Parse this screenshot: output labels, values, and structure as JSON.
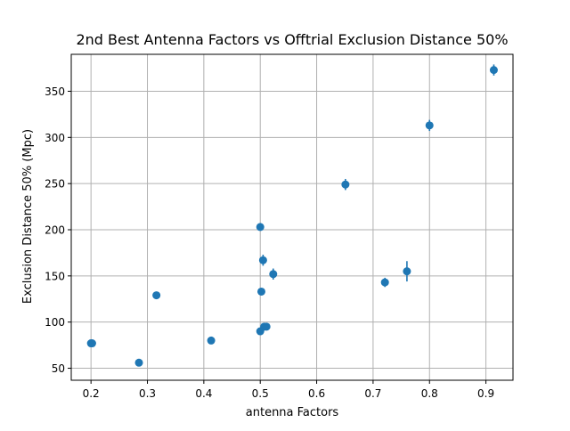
{
  "chart_data": {
    "type": "scatter",
    "title": "2nd Best Antenna Factors vs Offtrial Exclusion Distance 50%",
    "xlabel": "antenna Factors",
    "ylabel": "Exclusion Distance 50% (Mpc)",
    "xlim": [
      0.165,
      0.948
    ],
    "ylim": [
      37,
      390
    ],
    "xticks": [
      0.2,
      0.3,
      0.4,
      0.5,
      0.6,
      0.7,
      0.8,
      0.9
    ],
    "xtick_labels": [
      "0.2",
      "0.3",
      "0.4",
      "0.5",
      "0.6",
      "0.7",
      "0.8",
      "0.9"
    ],
    "yticks": [
      50,
      100,
      150,
      200,
      250,
      300,
      350
    ],
    "ytick_labels": [
      "50",
      "100",
      "150",
      "200",
      "250",
      "300",
      "350"
    ],
    "grid": true,
    "marker_color": "#1f77b4",
    "points": [
      {
        "x": 0.2,
        "y": 77,
        "err": 2
      },
      {
        "x": 0.202,
        "y": 77,
        "err": 2
      },
      {
        "x": 0.285,
        "y": 56,
        "err": 2
      },
      {
        "x": 0.316,
        "y": 129,
        "err": 3
      },
      {
        "x": 0.413,
        "y": 80,
        "err": 2
      },
      {
        "x": 0.5,
        "y": 203,
        "err": 2
      },
      {
        "x": 0.5,
        "y": 90,
        "err": 2
      },
      {
        "x": 0.502,
        "y": 133,
        "err": 3
      },
      {
        "x": 0.505,
        "y": 167,
        "err": 6
      },
      {
        "x": 0.507,
        "y": 95,
        "err": 2
      },
      {
        "x": 0.511,
        "y": 95,
        "err": 2
      },
      {
        "x": 0.523,
        "y": 152,
        "err": 6
      },
      {
        "x": 0.651,
        "y": 249,
        "err": 6
      },
      {
        "x": 0.721,
        "y": 143,
        "err": 5
      },
      {
        "x": 0.76,
        "y": 155,
        "err": 11
      },
      {
        "x": 0.8,
        "y": 313,
        "err": 6
      },
      {
        "x": 0.914,
        "y": 373,
        "err": 6
      }
    ]
  }
}
